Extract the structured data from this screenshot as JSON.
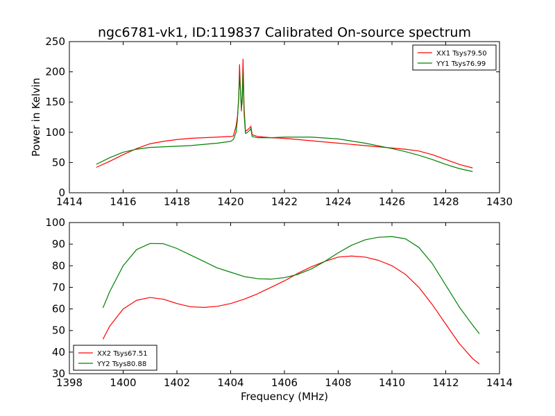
{
  "figure": {
    "title": "ngc6781-vk1, ID:119837 Calibrated On-source spectrum",
    "background": "#ffffff"
  },
  "chart_data": [
    {
      "type": "line",
      "xlim": [
        1414,
        1430
      ],
      "ylim": [
        0,
        250
      ],
      "xticks": [
        1414,
        1416,
        1418,
        1420,
        1422,
        1424,
        1426,
        1428,
        1430
      ],
      "yticks": [
        0,
        50,
        100,
        150,
        200,
        250
      ],
      "xlabel": "",
      "ylabel": "Power in Kelvin",
      "grid": false,
      "legend": {
        "placement": "top-right"
      },
      "series": [
        {
          "name": "XX1 Tsys79.50",
          "color": "#ff0000",
          "x": [
            1415.0,
            1415.5,
            1416.0,
            1416.5,
            1417.0,
            1417.5,
            1418.0,
            1418.5,
            1419.0,
            1419.5,
            1420.0,
            1420.1,
            1420.2,
            1420.25,
            1420.3,
            1420.33,
            1420.36,
            1420.4,
            1420.43,
            1420.46,
            1420.5,
            1420.55,
            1420.6,
            1420.7,
            1420.75,
            1420.8,
            1421.0,
            1421.5,
            1422.0,
            1423.0,
            1424.0,
            1425.0,
            1426.0,
            1426.5,
            1427.0,
            1427.5,
            1428.0,
            1428.5,
            1429.0
          ],
          "y": [
            42,
            52,
            63,
            73,
            81,
            85,
            88,
            90,
            91,
            92,
            93,
            94,
            110,
            125,
            155,
            212,
            175,
            135,
            160,
            221,
            140,
            102,
            103,
            107,
            110,
            96,
            93,
            91,
            90,
            86,
            82,
            78,
            74,
            72,
            69,
            63,
            55,
            47,
            41
          ]
        },
        {
          "name": "YY1 Tsys76.99",
          "color": "#008000",
          "x": [
            1415.0,
            1415.5,
            1416.0,
            1416.5,
            1417.0,
            1417.5,
            1418.0,
            1418.5,
            1419.0,
            1419.5,
            1420.0,
            1420.1,
            1420.2,
            1420.25,
            1420.3,
            1420.33,
            1420.36,
            1420.4,
            1420.43,
            1420.46,
            1420.5,
            1420.55,
            1420.6,
            1420.7,
            1420.75,
            1420.8,
            1421.0,
            1421.5,
            1422.0,
            1422.5,
            1423.0,
            1424.0,
            1425.0,
            1426.0,
            1426.5,
            1427.0,
            1427.5,
            1428.0,
            1428.5,
            1429.0
          ],
          "y": [
            47,
            58,
            67,
            72,
            75,
            76,
            77,
            78,
            80,
            82,
            85,
            88,
            100,
            120,
            160,
            195,
            170,
            140,
            150,
            200,
            130,
            98,
            99,
            103,
            106,
            93,
            91,
            91,
            92,
            92,
            92,
            89,
            82,
            73,
            68,
            62,
            55,
            47,
            40,
            35
          ]
        }
      ]
    },
    {
      "type": "line",
      "xlim": [
        1398,
        1414
      ],
      "ylim": [
        30,
        100
      ],
      "xticks": [
        1398,
        1400,
        1402,
        1404,
        1406,
        1408,
        1410,
        1412,
        1414
      ],
      "yticks": [
        30,
        40,
        50,
        60,
        70,
        80,
        90,
        100
      ],
      "xlabel": "Frequency (MHz)",
      "ylabel": "",
      "grid": false,
      "legend": {
        "placement": "bottom-left"
      },
      "series": [
        {
          "name": "XX2 Tsys67.51",
          "color": "#ff0000",
          "x": [
            1399.25,
            1399.5,
            1400.0,
            1400.5,
            1401.0,
            1401.5,
            1402.0,
            1402.5,
            1403.0,
            1403.5,
            1404.0,
            1404.5,
            1405.0,
            1405.5,
            1406.0,
            1406.5,
            1407.0,
            1407.5,
            1408.0,
            1408.5,
            1409.0,
            1409.5,
            1410.0,
            1410.5,
            1411.0,
            1411.5,
            1412.0,
            1412.5,
            1413.0,
            1413.25
          ],
          "y": [
            46,
            52,
            60,
            64,
            65.3,
            64.5,
            62.5,
            61,
            60.7,
            61.2,
            62.5,
            64.5,
            67,
            70,
            73,
            76.5,
            79.5,
            82,
            84,
            84.5,
            84,
            82.5,
            80,
            76,
            70,
            62,
            53,
            44,
            37,
            34.5
          ]
        },
        {
          "name": "YY2 Tsys80.88",
          "color": "#008000",
          "x": [
            1399.25,
            1399.5,
            1400.0,
            1400.5,
            1401.0,
            1401.5,
            1402.0,
            1402.5,
            1403.0,
            1403.5,
            1404.0,
            1404.5,
            1405.0,
            1405.5,
            1406.0,
            1406.5,
            1407.0,
            1407.5,
            1408.0,
            1408.5,
            1409.0,
            1409.5,
            1410.0,
            1410.5,
            1411.0,
            1411.5,
            1412.0,
            1412.5,
            1413.0,
            1413.25
          ],
          "y": [
            60.5,
            68,
            80,
            87.5,
            90.3,
            90.2,
            88,
            85,
            82,
            79,
            77,
            75,
            74,
            73.8,
            74.5,
            76,
            78.5,
            82,
            86,
            89.5,
            92,
            93.2,
            93.5,
            92.5,
            88.5,
            81,
            71,
            61,
            52.5,
            48.5
          ]
        }
      ]
    }
  ]
}
